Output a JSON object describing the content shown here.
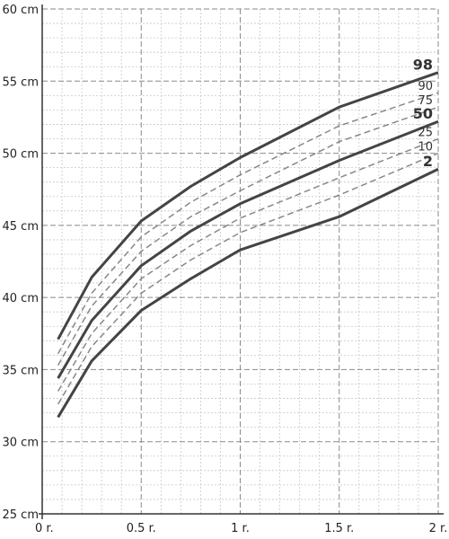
{
  "chart_data": {
    "type": "line",
    "title": "",
    "xlabel": "",
    "ylabel": "",
    "xlim": [
      0,
      2
    ],
    "ylim": [
      25,
      60
    ],
    "grid": true,
    "x_ticks": [
      {
        "value": 0,
        "label": "0 r."
      },
      {
        "value": 0.5,
        "label": "0.5 r."
      },
      {
        "value": 1,
        "label": "1 r."
      },
      {
        "value": 1.5,
        "label": "1.5 r."
      },
      {
        "value": 2,
        "label": "2 r."
      }
    ],
    "y_ticks": [
      {
        "value": 25,
        "label": "25 cm"
      },
      {
        "value": 30,
        "label": "30 cm"
      },
      {
        "value": 35,
        "label": "35 cm"
      },
      {
        "value": 40,
        "label": "40 cm"
      },
      {
        "value": 45,
        "label": "45 cm"
      },
      {
        "value": 50,
        "label": "50 cm"
      },
      {
        "value": 55,
        "label": "55 cm"
      },
      {
        "value": 60,
        "label": "60 cm"
      }
    ],
    "x": [
      0.08,
      0.25,
      0.5,
      0.75,
      1.0,
      1.5,
      2.0
    ],
    "series": [
      {
        "name": "98",
        "style": "solid",
        "color": "#444444",
        "values": [
          37.1,
          41.4,
          45.3,
          47.7,
          49.7,
          53.2,
          55.6
        ]
      },
      {
        "name": "90",
        "style": "dashed",
        "color": "#888888",
        "values": [
          36.1,
          40.3,
          44.2,
          46.6,
          48.5,
          51.9,
          54.2
        ]
      },
      {
        "name": "75",
        "style": "dashed",
        "color": "#888888",
        "values": [
          35.3,
          39.4,
          43.2,
          45.6,
          47.4,
          50.8,
          53.2
        ]
      },
      {
        "name": "50",
        "style": "solid",
        "color": "#444444",
        "values": [
          34.4,
          38.4,
          42.2,
          44.6,
          46.5,
          49.5,
          52.2
        ]
      },
      {
        "name": "25",
        "style": "dashed",
        "color": "#888888",
        "values": [
          33.5,
          37.5,
          41.3,
          43.6,
          45.5,
          48.3,
          51.0
        ]
      },
      {
        "name": "10",
        "style": "dashed",
        "color": "#888888",
        "values": [
          32.6,
          36.6,
          40.3,
          42.6,
          44.5,
          47.1,
          50.0
        ]
      },
      {
        "name": "2",
        "style": "solid",
        "color": "#444444",
        "values": [
          31.7,
          35.6,
          39.1,
          41.3,
          43.3,
          45.6,
          48.9
        ]
      }
    ]
  }
}
